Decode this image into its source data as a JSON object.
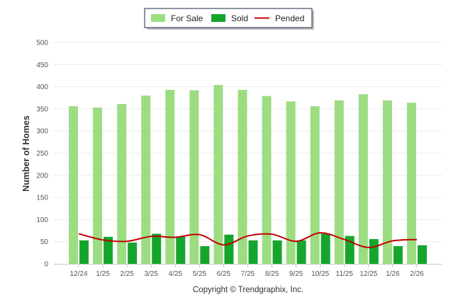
{
  "chart_data": {
    "type": "bar",
    "ylabel": "Number of Homes",
    "ylim": [
      0,
      500
    ],
    "yticks": [
      0,
      50,
      100,
      150,
      200,
      250,
      300,
      350,
      400,
      450,
      500
    ],
    "categories": [
      "12/24",
      "1/25",
      "2/25",
      "3/25",
      "4/25",
      "5/25",
      "6/25",
      "7/25",
      "8/25",
      "9/25",
      "10/25",
      "11/25",
      "12/25",
      "1/26",
      "2/26"
    ],
    "series": [
      {
        "name": "For Sale",
        "kind": "bar",
        "color": "#9ddd82",
        "values": [
          356,
          353,
          361,
          380,
          393,
          392,
          404,
          393,
          379,
          367,
          356,
          369,
          383,
          369,
          364
        ]
      },
      {
        "name": "Sold",
        "kind": "bar",
        "color": "#16a52b",
        "values": [
          53,
          61,
          48,
          68,
          62,
          40,
          66,
          53,
          53,
          53,
          68,
          63,
          56,
          40,
          42
        ]
      },
      {
        "name": "Pended",
        "kind": "line",
        "color": "#c00000",
        "values": [
          68,
          54,
          51,
          62,
          60,
          66,
          43,
          63,
          67,
          51,
          70,
          55,
          37,
          52,
          55
        ]
      }
    ],
    "legend": [
      "For Sale",
      "Sold",
      "Pended"
    ],
    "credit": "Copyright © Trendgraphix, Inc."
  }
}
